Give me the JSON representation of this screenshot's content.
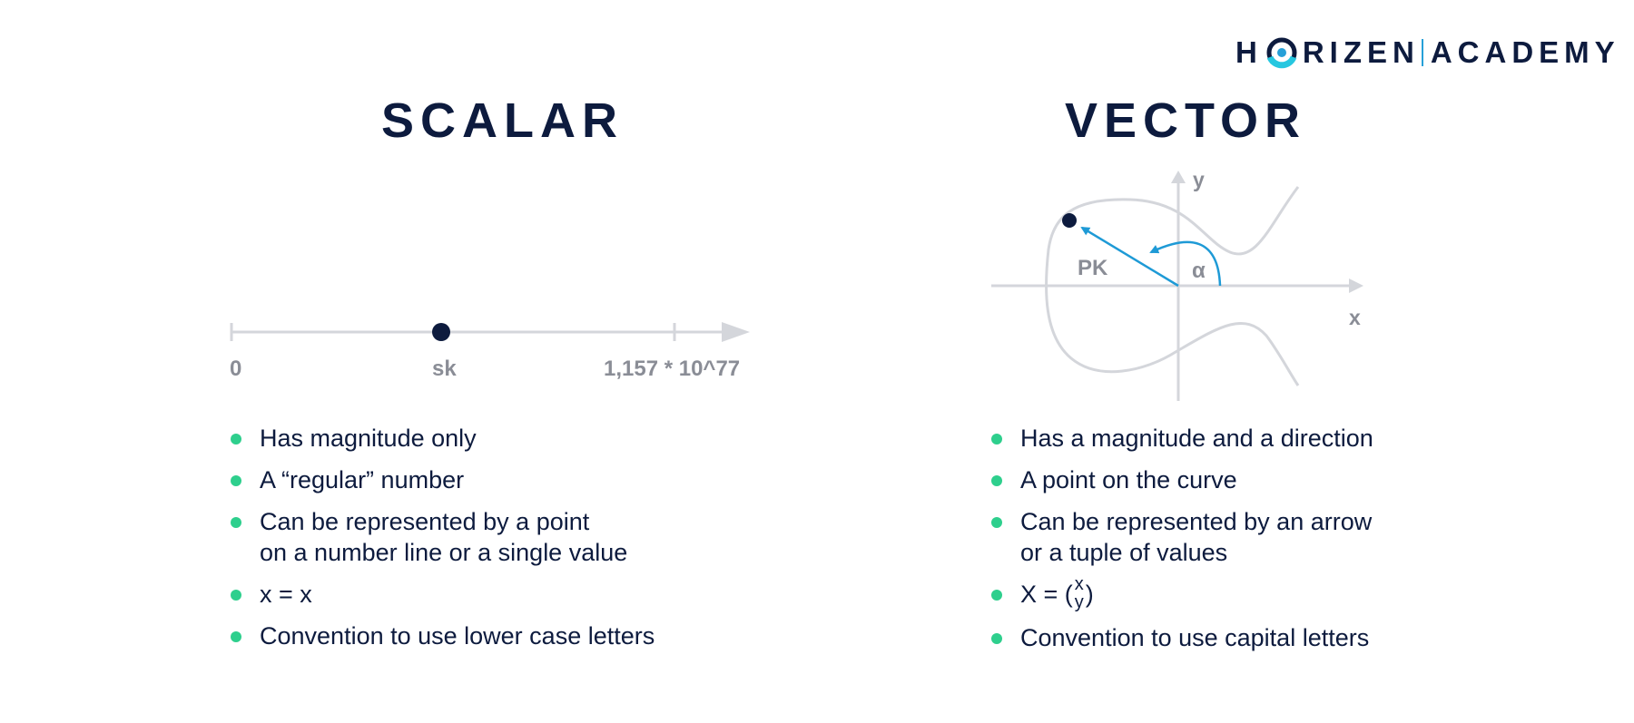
{
  "logo": {
    "part1": "H",
    "part2": "RIZEN",
    "part3": "ACADEMY"
  },
  "scalar": {
    "title": "SCALAR",
    "number_line": {
      "start_label": "0",
      "point_label": "sk",
      "end_label": "1,157 * 10^77"
    },
    "bullets": [
      {
        "text": "Has magnitude only"
      },
      {
        "text": "A “regular” number"
      },
      {
        "text": "Can be represented by a point",
        "text2": "on a number line or a single value"
      },
      {
        "text": "x = x"
      },
      {
        "text": "Convention to use lower case letters"
      }
    ]
  },
  "vector": {
    "title": "VECTOR",
    "graph": {
      "y_label": "y",
      "x_label": "x",
      "vector_label": "PK",
      "angle_label": "α"
    },
    "bullets": [
      {
        "text": "Has a magnitude and a direction"
      },
      {
        "text": "A point on the curve"
      },
      {
        "text": "Can be represented by an arrow",
        "text2": "or a tuple of values"
      },
      {
        "prefix": "X = (",
        "top": "x",
        "bottom": "y",
        "suffix": ")"
      },
      {
        "text": "Convention to use capital letters"
      }
    ]
  },
  "colors": {
    "navy": "#0d1b3e",
    "bullet_green": "#2ecf8d",
    "arrow_blue": "#1e9ad6",
    "axis_gray": "#d4d6db",
    "label_gray": "#8a8d96"
  }
}
